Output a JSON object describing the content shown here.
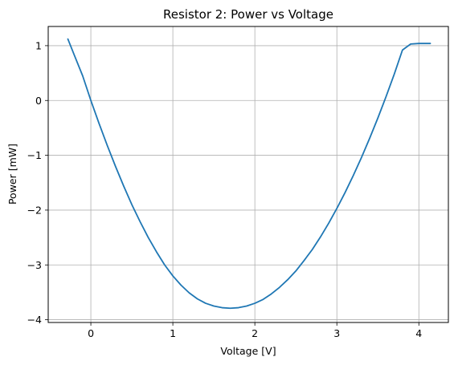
{
  "chart_data": {
    "type": "line",
    "title": "Resistor 2: Power vs Voltage",
    "xlabel": "Voltage [V]",
    "ylabel": "Power [mW]",
    "xlim": [
      -0.52,
      4.36
    ],
    "ylim": [
      -4.05,
      1.35
    ],
    "grid": true,
    "legend": "none",
    "xticks": [
      0,
      1,
      2,
      3,
      4
    ],
    "yticks": [
      1,
      0,
      -1,
      -2,
      -3,
      -4
    ],
    "xtick_labels": [
      "0",
      "1",
      "2",
      "3",
      "4"
    ],
    "ytick_labels": [
      "1",
      "0",
      "−1",
      "−2",
      "−3",
      "−4"
    ],
    "colors": {
      "line": "#1f77b4",
      "grid": "#b0b0b0",
      "axes": "#000000"
    },
    "series": [
      {
        "x": [
          -0.28,
          -0.2,
          -0.1,
          0.0,
          0.1,
          0.2,
          0.3,
          0.4,
          0.5,
          0.6,
          0.7,
          0.8,
          0.9,
          1.0,
          1.1,
          1.2,
          1.3,
          1.4,
          1.5,
          1.6,
          1.7,
          1.8,
          1.9,
          2.0,
          2.1,
          2.2,
          2.3,
          2.4,
          2.5,
          2.6,
          2.7,
          2.8,
          2.9,
          3.0,
          3.1,
          3.2,
          3.3,
          3.4,
          3.5,
          3.6,
          3.7,
          3.8,
          3.9,
          4.0,
          4.1,
          4.14
        ],
        "y": [
          1.12,
          0.82,
          0.45,
          0.0,
          -0.42,
          -0.82,
          -1.2,
          -1.56,
          -1.9,
          -2.21,
          -2.5,
          -2.76,
          -3.0,
          -3.2,
          -3.37,
          -3.51,
          -3.62,
          -3.7,
          -3.75,
          -3.78,
          -3.79,
          -3.78,
          -3.75,
          -3.7,
          -3.63,
          -3.53,
          -3.41,
          -3.27,
          -3.11,
          -2.92,
          -2.72,
          -2.49,
          -2.24,
          -1.97,
          -1.68,
          -1.37,
          -1.04,
          -0.69,
          -0.32,
          0.07,
          0.48,
          0.92,
          1.03,
          1.04,
          1.04,
          1.04
        ]
      }
    ]
  }
}
